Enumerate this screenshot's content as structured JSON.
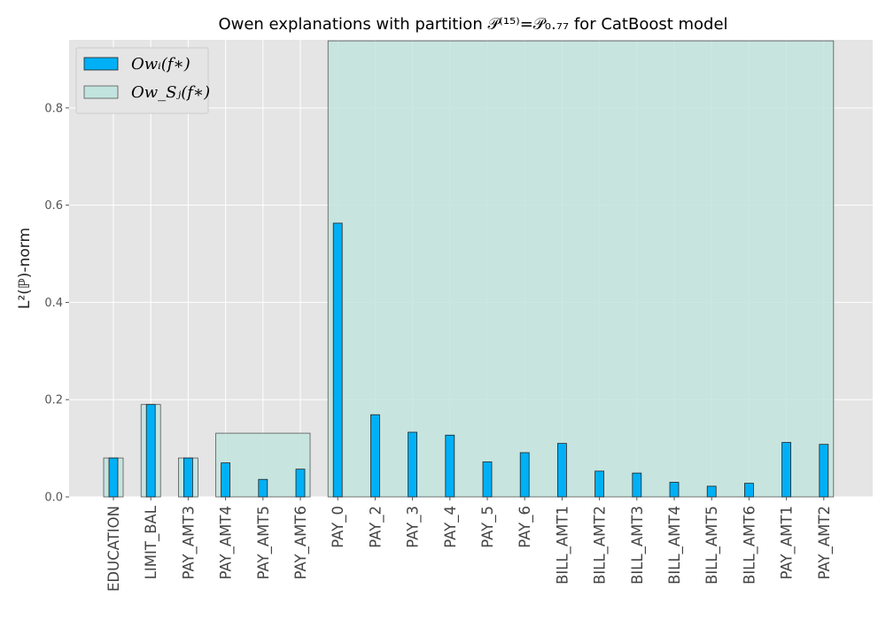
{
  "chart_data": {
    "type": "bar",
    "title": "Owen explanations with partition 𝒫⁽¹⁵⁾=𝒫₀.₇₇ for CatBoost model",
    "xlabel": "",
    "ylabel": "L²(ℙ)-norm",
    "ylim": [
      0,
      0.94
    ],
    "yticks": [
      0.0,
      0.2,
      0.4,
      0.6,
      0.8
    ],
    "ytick_labels": [
      "0.0",
      "0.2",
      "0.4",
      "0.6",
      "0.8"
    ],
    "grid": true,
    "legend_position": "top-left",
    "categories": [
      "EDUCATION",
      "LIMIT_BAL",
      "PAY_AMT3",
      "PAY_AMT4",
      "PAY_AMT5",
      "PAY_AMT6",
      "PAY_0",
      "PAY_2",
      "PAY_3",
      "PAY_4",
      "PAY_5",
      "PAY_6",
      "BILL_AMT1",
      "BILL_AMT2",
      "BILL_AMT3",
      "BILL_AMT4",
      "BILL_AMT5",
      "BILL_AMT6",
      "PAY_AMT1",
      "PAY_AMT2"
    ],
    "series": [
      {
        "name": "Owᵢ(f∗)",
        "color": "#00b0f6",
        "values": [
          0.08,
          0.19,
          0.08,
          0.07,
          0.036,
          0.057,
          0.563,
          0.169,
          0.133,
          0.127,
          0.072,
          0.091,
          0.11,
          0.053,
          0.049,
          0.03,
          0.022,
          0.028,
          0.112,
          0.108
        ]
      },
      {
        "name": "Ow_Sⱼ(f∗)",
        "color": "#c2e4de",
        "groups": [
          {
            "members": [
              "EDUCATION"
            ],
            "value": 0.08
          },
          {
            "members": [
              "LIMIT_BAL"
            ],
            "value": 0.19
          },
          {
            "members": [
              "PAY_AMT3"
            ],
            "value": 0.08
          },
          {
            "members": [
              "PAY_AMT4",
              "PAY_AMT5",
              "PAY_AMT6"
            ],
            "value": 0.131
          },
          {
            "members": [
              "PAY_0",
              "PAY_2",
              "PAY_3",
              "PAY_4",
              "PAY_5",
              "PAY_6",
              "BILL_AMT1",
              "BILL_AMT2",
              "BILL_AMT3",
              "BILL_AMT4",
              "BILL_AMT5",
              "BILL_AMT6",
              "PAY_AMT1",
              "PAY_AMT2"
            ],
            "value": 0.938
          }
        ]
      }
    ]
  }
}
